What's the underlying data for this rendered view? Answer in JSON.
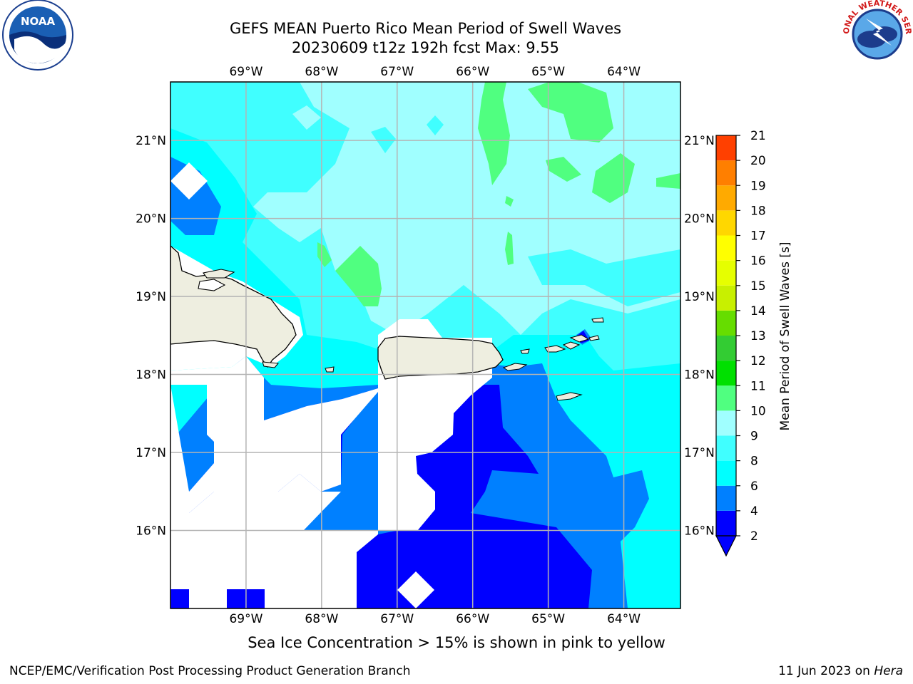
{
  "title_line1": "GEFS MEAN Puerto Rico Mean Period of Swell Waves",
  "title_line2": "20230609 t12z 192h fcst   Max: 9.55",
  "ice_note": "Sea Ice Concentration > 15% is shown in pink to yellow",
  "footer_left": "NCEP/EMC/Verification Post Processing Product Generation Branch",
  "footer_date": "11 Jun 2023 on ",
  "footer_host": "Hera",
  "map": {
    "lon_range": [
      -70.0,
      -63.25
    ],
    "lat_range": [
      15.0,
      21.75
    ],
    "lon_ticks": [
      "69°W",
      "68°W",
      "67°W",
      "66°W",
      "65°W",
      "64°W"
    ],
    "lat_ticks": [
      "21°N",
      "20°N",
      "19°N",
      "18°N",
      "17°N",
      "16°N"
    ],
    "grid": true
  },
  "colorbar": {
    "label": "Mean Period of Swell Waves [s]",
    "levels": [
      2,
      4,
      6,
      8,
      9,
      10,
      11,
      12,
      13,
      14,
      15,
      16,
      17,
      18,
      19,
      20,
      21
    ],
    "colors": [
      "#0000ff",
      "#0080ff",
      "#00ffff",
      "#40ffff",
      "#a0ffff",
      "#50ff80",
      "#00e000",
      "#33cc33",
      "#66dd00",
      "#c8f000",
      "#e6ff00",
      "#ffff00",
      "#ffd700",
      "#ffaa00",
      "#ff7f00",
      "#ff4000",
      "#ff0000"
    ],
    "extend_min_color": "#0000ff"
  },
  "land_color": "#eeeee0",
  "logos": [
    "noaa-logo",
    "national-weather-service-logo"
  ]
}
